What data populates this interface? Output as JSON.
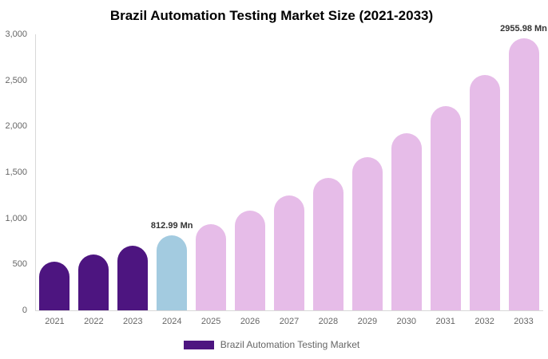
{
  "title": "Brazil Automation Testing Market Size (2021-2033)",
  "legend": {
    "items": [
      {
        "label": "Brazil Automation Testing Market",
        "color": "#4D1580"
      }
    ]
  },
  "colors": {
    "historical_bar": "#4D1580",
    "base_year_bar": "#A3CBE0",
    "forecast_bar": "#E6BCE8",
    "axis_line": "#D8D8D8",
    "tick_text": "#666666",
    "data_label_text": "#333333"
  },
  "chart_data": {
    "type": "bar",
    "title": "Brazil Automation Testing Market Size (2021-2033)",
    "unit": "Mn",
    "categories": [
      "2021",
      "2022",
      "2023",
      "2024",
      "2025",
      "2026",
      "2027",
      "2028",
      "2029",
      "2030",
      "2031",
      "2032",
      "2033"
    ],
    "series": [
      {
        "name": "Brazil Automation Testing Market",
        "values": [
          529,
          611,
          705,
          812.99,
          938,
          1083,
          1250,
          1443,
          1665,
          1921,
          2218,
          2560,
          2955.98
        ],
        "bar_colors": [
          "#4D1580",
          "#4D1580",
          "#4D1580",
          "#A3CBE0",
          "#E6BCE8",
          "#E6BCE8",
          "#E6BCE8",
          "#E6BCE8",
          "#E6BCE8",
          "#E6BCE8",
          "#E6BCE8",
          "#E6BCE8",
          "#E6BCE8"
        ]
      }
    ],
    "xlabel": "",
    "ylabel": "",
    "ylim": [
      0,
      3000
    ],
    "ytick_values": [
      0,
      500,
      1000,
      1500,
      2000,
      2500,
      3000
    ],
    "ytick_labels": [
      "0",
      "500",
      "1,000",
      "1,500",
      "2,000",
      "2,500",
      "3,000"
    ],
    "grid": false,
    "legend_position": "bottom",
    "annotations": [
      {
        "category": "2024",
        "text": "812.99 Mn"
      },
      {
        "category": "2033",
        "text": "2955.98 Mn"
      }
    ]
  }
}
